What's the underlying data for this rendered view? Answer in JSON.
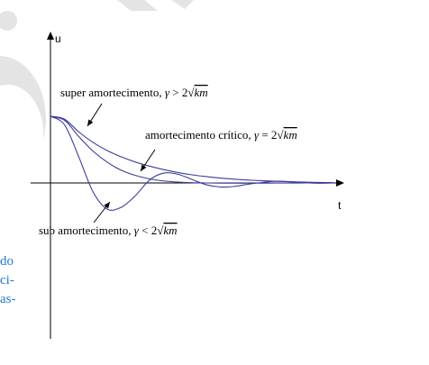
{
  "chart_data": {
    "type": "line",
    "title": "",
    "xlabel": "t",
    "ylabel": "u",
    "grid": false,
    "legend": "none",
    "xlim": [
      0,
      10
    ],
    "ylim": [
      -1.0,
      2.0
    ],
    "x": [
      0,
      0.5,
      1,
      1.5,
      2,
      2.5,
      3,
      3.5,
      4,
      4.5,
      5,
      5.5,
      6,
      6.5,
      7,
      7.5,
      8,
      8.5,
      9,
      9.5,
      10
    ],
    "series": [
      {
        "name": "super amortecimento",
        "values": [
          1.15,
          1.1,
          0.88,
          0.7,
          0.56,
          0.45,
          0.36,
          0.29,
          0.23,
          0.18,
          0.14,
          0.11,
          0.085,
          0.065,
          0.05,
          0.038,
          0.028,
          0.02,
          0.014,
          0.009,
          0.005
        ]
      },
      {
        "name": "amortecimento crítico",
        "values": [
          1.15,
          1.08,
          0.8,
          0.55,
          0.36,
          0.22,
          0.13,
          0.07,
          0.035,
          0.015,
          0.005,
          0.0,
          -0.003,
          -0.004,
          -0.004,
          -0.003,
          -0.002,
          -0.001,
          0.0,
          0.0,
          0.0
        ]
      },
      {
        "name": "sub amortecimento",
        "values": [
          1.15,
          1.0,
          0.45,
          -0.15,
          -0.45,
          -0.42,
          -0.22,
          0.05,
          0.17,
          0.15,
          0.06,
          -0.03,
          -0.07,
          -0.06,
          -0.02,
          0.01,
          0.03,
          0.02,
          0.005,
          -0.005,
          0.0
        ]
      }
    ],
    "annotations": [
      {
        "series": "super amortecimento",
        "prefix": "super amortecimento, ",
        "sym": "γ",
        "rel": " > 2",
        "rad": "km"
      },
      {
        "series": "amortecimento crítico",
        "prefix": "amortecimento crítico, ",
        "sym": "γ",
        "rel": " = 2",
        "rad": "km"
      },
      {
        "series": "sub amortecimento",
        "prefix": "sub amortecimento, ",
        "sym": "γ",
        "rel": " < 2",
        "rad": "km"
      }
    ]
  },
  "sidebar_fragments": [
    "do",
    "ci-",
    "as-"
  ],
  "colors": {
    "curve": "#3c3c9a",
    "axis": "#000000",
    "sidebar_text": "#1f77d2",
    "watermark": "#e4e4e4"
  }
}
